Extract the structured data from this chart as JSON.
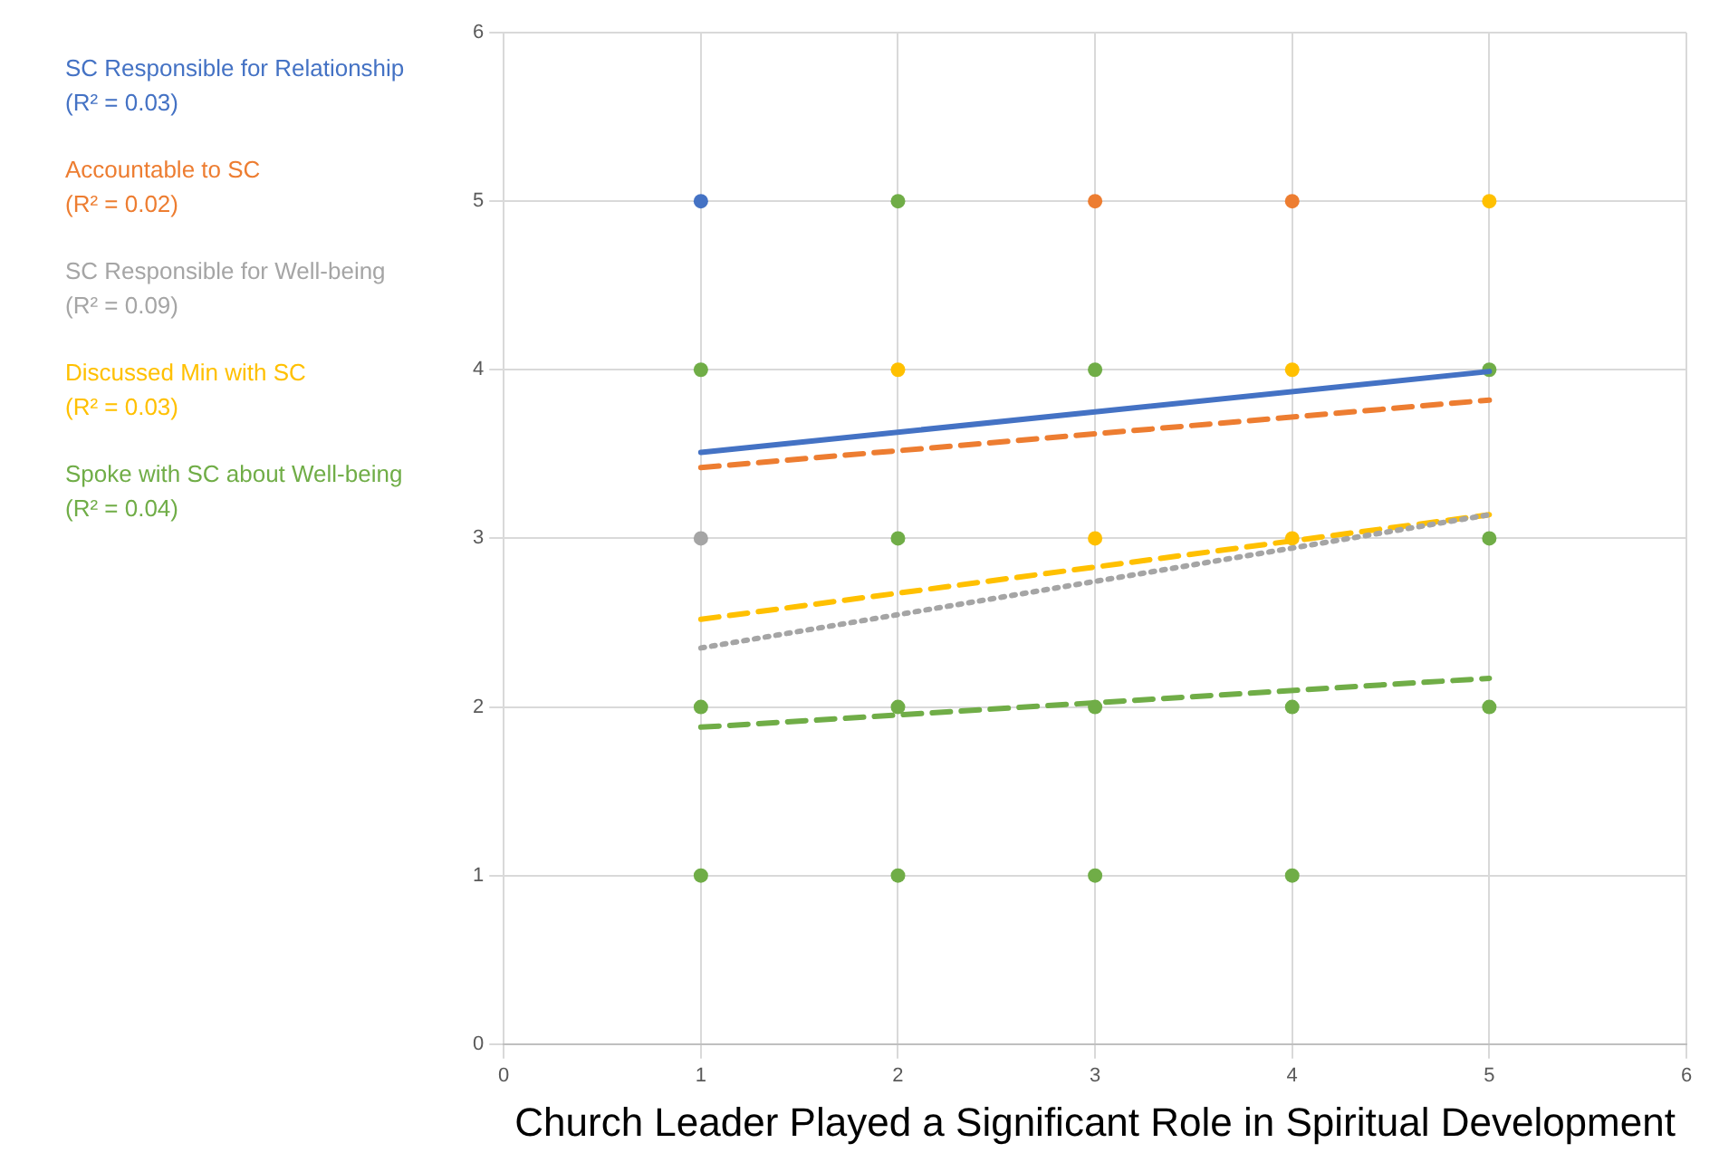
{
  "chart_data": {
    "type": "scatter",
    "xlabel": "Church Leader Played a Significant Role in Spiritual Development",
    "xlim": [
      0,
      6
    ],
    "ylim": [
      0,
      6
    ],
    "xticks": [
      0,
      1,
      2,
      3,
      4,
      5,
      6
    ],
    "yticks": [
      0,
      1,
      2,
      3,
      4,
      5,
      6
    ],
    "grid": true,
    "legend": "left",
    "marker": "circle",
    "annotations": [
      "(R² = 0.03)",
      "(R² = 0.02)",
      "(R² = 0.09)",
      "(R² = 0.03)",
      "(R² = 0.04)"
    ],
    "series": [
      {
        "name": "SC Responsible for Relationship",
        "color": "#4472c4",
        "x": [
          1
        ],
        "values": [
          5
        ]
      },
      {
        "type": "line",
        "marker": "none",
        "line_style": "solid",
        "color": "#4472c4",
        "x": [
          1,
          5
        ],
        "values": [
          3.51,
          3.99
        ]
      },
      {
        "name": "Accountable to SC",
        "color": "#ed7d31",
        "x": [
          3,
          4
        ],
        "values": [
          5,
          5
        ]
      },
      {
        "type": "line",
        "marker": "none",
        "line_style": "dashed",
        "color": "#ed7d31",
        "x": [
          1,
          5
        ],
        "values": [
          3.42,
          3.82
        ]
      },
      {
        "name": "SC Responsible for Well-being",
        "color": "#a5a5a5",
        "x": [
          1
        ],
        "values": [
          3
        ]
      },
      {
        "type": "line",
        "marker": "none",
        "line_style": "dotted",
        "color": "#a5a5a5",
        "x": [
          1,
          5
        ],
        "values": [
          2.35,
          3.14
        ]
      },
      {
        "name": "Discussed Min with SC",
        "color": "#ffc000",
        "x": [
          5,
          2,
          4,
          3,
          4
        ],
        "values": [
          5,
          4,
          4,
          3,
          3
        ]
      },
      {
        "type": "line",
        "marker": "none",
        "line_style": "dashed",
        "color": "#ffc000",
        "x": [
          1,
          5
        ],
        "values": [
          2.52,
          3.14
        ]
      },
      {
        "name": "Spoke with SC about Well-being",
        "color": "#70ad47",
        "x": [
          2,
          1,
          3,
          5,
          2,
          5,
          1,
          2,
          3,
          4,
          5,
          1,
          2,
          3,
          4
        ],
        "values": [
          5,
          4,
          4,
          4,
          3,
          3,
          2,
          2,
          2,
          2,
          2,
          1,
          1,
          1,
          1
        ]
      },
      {
        "type": "line",
        "marker": "none",
        "line_style": "dashed",
        "color": "#70ad47",
        "x": [
          1,
          5
        ],
        "values": [
          1.88,
          2.17
        ]
      }
    ]
  }
}
